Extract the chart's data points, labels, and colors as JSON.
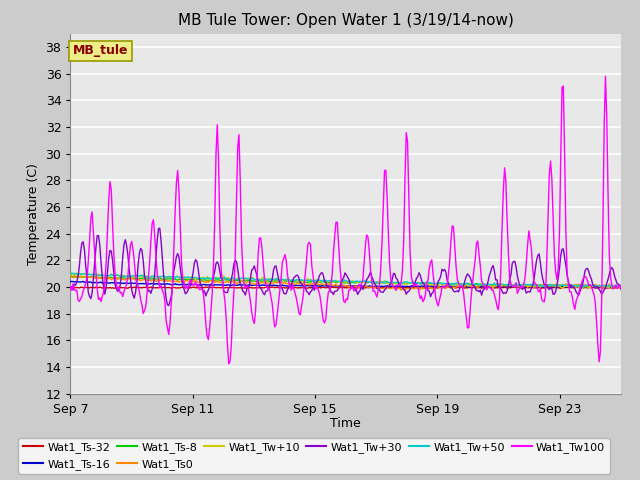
{
  "title": "MB Tule Tower: Open Water 1 (3/19/14-now)",
  "xlabel": "Time",
  "ylabel": "Temperature (C)",
  "ylim": [
    12,
    39
  ],
  "yticks": [
    12,
    14,
    16,
    18,
    20,
    22,
    24,
    26,
    28,
    30,
    32,
    34,
    36,
    38
  ],
  "xtick_labels": [
    "Sep 7",
    "Sep 11",
    "Sep 15",
    "Sep 19",
    "Sep 23"
  ],
  "xtick_positions": [
    0,
    4,
    8,
    12,
    16
  ],
  "series_colors": {
    "Wat1_Ts-32": "#cc0000",
    "Wat1_Ts-16": "#0000cc",
    "Wat1_Ts-8": "#00cc00",
    "Wat1_Ts0": "#ff8800",
    "Wat1_Tw+10": "#cccc00",
    "Wat1_Tw+30": "#8800cc",
    "Wat1_Tw+50": "#00cccc",
    "Wat1_Tw100": "#ff00ff"
  },
  "legend_label": "MB_tule",
  "legend_label_color": "#880000",
  "legend_box_facecolor": "#eeee88",
  "legend_box_edgecolor": "#999900",
  "fig_facecolor": "#cccccc",
  "plot_facecolor": "#e8e8e8",
  "grid_color": "#ffffff",
  "title_fontsize": 11,
  "axis_label_fontsize": 9,
  "tick_fontsize": 9,
  "legend_fontsize": 8
}
